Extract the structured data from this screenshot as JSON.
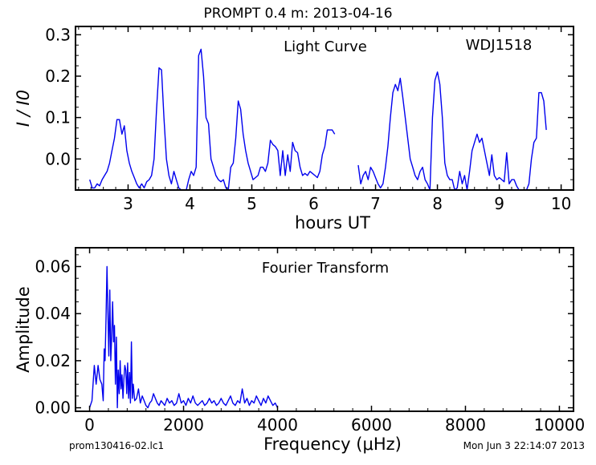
{
  "header": {
    "title": "PROMPT 0.4 m:  2013-04-16"
  },
  "footer": {
    "filename": "prom130416-02.lc1",
    "timestamp": "Mon Jun  3 22:14:07 2013"
  },
  "colors": {
    "line": "#0000ee",
    "axes": "#000000",
    "background": "#ffffff"
  },
  "chart_data": [
    {
      "type": "line",
      "title": "Light Curve",
      "annotation": "WDJ1518",
      "xlabel": "hours UT",
      "ylabel": "I / I0",
      "xlim": [
        2.15,
        10.2
      ],
      "ylim": [
        -0.075,
        0.32
      ],
      "xticks": [
        3,
        4,
        5,
        6,
        7,
        8,
        9,
        10
      ],
      "yticks": [
        0.0,
        0.1,
        0.2,
        0.3
      ],
      "xtick_labels": [
        "3",
        "4",
        "5",
        "6",
        "7",
        "8",
        "9",
        "10"
      ],
      "ytick_labels": [
        "0.0",
        "0.1",
        "0.2",
        "0.3"
      ],
      "grid": false,
      "series": [
        {
          "segments": [
            [
              [
                2.38,
                -0.05
              ],
              [
                2.42,
                -0.07
              ],
              [
                2.46,
                -0.07
              ],
              [
                2.5,
                -0.06
              ],
              [
                2.54,
                -0.065
              ],
              [
                2.58,
                -0.05
              ],
              [
                2.62,
                -0.04
              ],
              [
                2.66,
                -0.03
              ],
              [
                2.7,
                -0.01
              ],
              [
                2.74,
                0.02
              ],
              [
                2.78,
                0.05
              ],
              [
                2.82,
                0.095
              ],
              [
                2.86,
                0.095
              ],
              [
                2.9,
                0.06
              ],
              [
                2.94,
                0.08
              ],
              [
                2.98,
                0.02
              ],
              [
                3.02,
                -0.01
              ],
              [
                3.06,
                -0.03
              ],
              [
                3.1,
                -0.045
              ],
              [
                3.14,
                -0.06
              ],
              [
                3.18,
                -0.07
              ],
              [
                3.22,
                -0.06
              ],
              [
                3.26,
                -0.07
              ],
              [
                3.3,
                -0.055
              ],
              [
                3.34,
                -0.05
              ],
              [
                3.38,
                -0.04
              ],
              [
                3.42,
                0.0
              ],
              [
                3.46,
                0.12
              ],
              [
                3.5,
                0.22
              ],
              [
                3.54,
                0.215
              ],
              [
                3.58,
                0.1
              ],
              [
                3.62,
                0.0
              ],
              [
                3.66,
                -0.04
              ],
              [
                3.7,
                -0.06
              ],
              [
                3.74,
                -0.03
              ],
              [
                3.78,
                -0.05
              ],
              [
                3.82,
                -0.07
              ],
              [
                3.86,
                -0.075
              ],
              [
                3.9,
                -0.075
              ],
              [
                3.94,
                -0.075
              ],
              [
                3.98,
                -0.05
              ],
              [
                4.02,
                -0.03
              ],
              [
                4.06,
                -0.04
              ],
              [
                4.1,
                -0.02
              ],
              [
                4.14,
                0.25
              ],
              [
                4.18,
                0.265
              ],
              [
                4.22,
                0.2
              ],
              [
                4.26,
                0.1
              ],
              [
                4.3,
                0.085
              ],
              [
                4.34,
                0.0
              ],
              [
                4.38,
                -0.02
              ],
              [
                4.42,
                -0.04
              ],
              [
                4.46,
                -0.05
              ],
              [
                4.5,
                -0.055
              ],
              [
                4.54,
                -0.05
              ],
              [
                4.58,
                -0.07
              ],
              [
                4.62,
                -0.075
              ],
              [
                4.66,
                -0.02
              ],
              [
                4.7,
                -0.01
              ],
              [
                4.74,
                0.05
              ],
              [
                4.78,
                0.14
              ],
              [
                4.82,
                0.12
              ],
              [
                4.86,
                0.06
              ],
              [
                4.9,
                0.02
              ],
              [
                4.94,
                -0.01
              ],
              [
                4.98,
                -0.03
              ],
              [
                5.02,
                -0.05
              ],
              [
                5.06,
                -0.045
              ],
              [
                5.1,
                -0.04
              ],
              [
                5.14,
                -0.02
              ],
              [
                5.18,
                -0.02
              ],
              [
                5.22,
                -0.03
              ],
              [
                5.26,
                -0.01
              ],
              [
                5.3,
                0.045
              ],
              [
                5.34,
                0.035
              ],
              [
                5.38,
                0.03
              ],
              [
                5.42,
                0.02
              ],
              [
                5.46,
                -0.04
              ],
              [
                5.5,
                0.02
              ],
              [
                5.54,
                -0.04
              ],
              [
                5.58,
                0.01
              ],
              [
                5.62,
                -0.03
              ],
              [
                5.66,
                0.04
              ],
              [
                5.7,
                0.02
              ],
              [
                5.74,
                0.015
              ],
              [
                5.78,
                -0.02
              ],
              [
                5.82,
                -0.04
              ],
              [
                5.86,
                -0.035
              ],
              [
                5.9,
                -0.04
              ],
              [
                5.94,
                -0.03
              ],
              [
                5.98,
                -0.035
              ],
              [
                6.02,
                -0.04
              ],
              [
                6.06,
                -0.045
              ],
              [
                6.1,
                -0.03
              ],
              [
                6.14,
                0.01
              ],
              [
                6.18,
                0.03
              ],
              [
                6.22,
                0.07
              ],
              [
                6.26,
                0.07
              ],
              [
                6.3,
                0.07
              ],
              [
                6.34,
                0.06
              ]
            ],
            [
              [
                6.72,
                -0.015
              ],
              [
                6.76,
                -0.06
              ],
              [
                6.8,
                -0.04
              ],
              [
                6.84,
                -0.03
              ],
              [
                6.88,
                -0.05
              ],
              [
                6.92,
                -0.02
              ],
              [
                6.96,
                -0.03
              ],
              [
                7.0,
                -0.045
              ],
              [
                7.04,
                -0.06
              ],
              [
                7.08,
                -0.07
              ],
              [
                7.12,
                -0.06
              ],
              [
                7.16,
                -0.02
              ],
              [
                7.2,
                0.03
              ],
              [
                7.24,
                0.1
              ],
              [
                7.28,
                0.16
              ],
              [
                7.32,
                0.18
              ],
              [
                7.36,
                0.165
              ],
              [
                7.4,
                0.195
              ],
              [
                7.44,
                0.15
              ],
              [
                7.48,
                0.1
              ],
              [
                7.52,
                0.05
              ],
              [
                7.56,
                0.0
              ],
              [
                7.6,
                -0.02
              ],
              [
                7.64,
                -0.04
              ],
              [
                7.68,
                -0.05
              ],
              [
                7.72,
                -0.03
              ],
              [
                7.76,
                -0.02
              ],
              [
                7.8,
                -0.05
              ],
              [
                7.84,
                -0.06
              ],
              [
                7.88,
                -0.075
              ],
              [
                7.92,
                0.1
              ],
              [
                7.96,
                0.19
              ],
              [
                8.0,
                0.21
              ],
              [
                8.04,
                0.18
              ],
              [
                8.08,
                0.1
              ],
              [
                8.12,
                -0.01
              ],
              [
                8.16,
                -0.04
              ],
              [
                8.2,
                -0.05
              ],
              [
                8.24,
                -0.05
              ],
              [
                8.28,
                -0.075
              ],
              [
                8.32,
                -0.07
              ],
              [
                8.36,
                -0.03
              ],
              [
                8.4,
                -0.06
              ],
              [
                8.44,
                -0.04
              ],
              [
                8.48,
                -0.075
              ],
              [
                8.52,
                -0.03
              ],
              [
                8.56,
                0.02
              ],
              [
                8.6,
                0.04
              ],
              [
                8.64,
                0.06
              ],
              [
                8.68,
                0.04
              ],
              [
                8.72,
                0.05
              ],
              [
                8.76,
                0.02
              ],
              [
                8.8,
                -0.01
              ],
              [
                8.84,
                -0.04
              ],
              [
                8.88,
                0.01
              ],
              [
                8.92,
                -0.04
              ],
              [
                8.96,
                -0.05
              ],
              [
                9.0,
                -0.045
              ],
              [
                9.04,
                -0.05
              ],
              [
                9.08,
                -0.055
              ],
              [
                9.12,
                0.015
              ],
              [
                9.16,
                -0.06
              ],
              [
                9.2,
                -0.05
              ],
              [
                9.24,
                -0.05
              ],
              [
                9.28,
                -0.065
              ],
              [
                9.32,
                -0.075
              ],
              [
                9.36,
                -0.075
              ],
              [
                9.4,
                -0.075
              ],
              [
                9.44,
                -0.075
              ],
              [
                9.48,
                -0.06
              ],
              [
                9.52,
                0.0
              ],
              [
                9.56,
                0.04
              ],
              [
                9.6,
                0.05
              ],
              [
                9.64,
                0.16
              ],
              [
                9.68,
                0.16
              ],
              [
                9.72,
                0.14
              ],
              [
                9.76,
                0.07
              ]
            ]
          ]
        }
      ]
    },
    {
      "type": "line",
      "title": "Fourier Transform",
      "xlabel": "Frequency (μHz)",
      "ylabel": "Amplitude",
      "xlim": [
        -300,
        10300
      ],
      "ylim": [
        -0.0015,
        0.068
      ],
      "xticks": [
        0,
        2000,
        4000,
        6000,
        8000,
        10000
      ],
      "yticks": [
        0.0,
        0.02,
        0.04,
        0.06
      ],
      "xtick_labels": [
        "0",
        "2000",
        "4000",
        "6000",
        "8000",
        "10000"
      ],
      "ytick_labels": [
        "0.00",
        "0.02",
        "0.04",
        "0.06"
      ],
      "grid": false,
      "series": [
        {
          "x": [
            0,
            50,
            100,
            140,
            180,
            220,
            260,
            290,
            310,
            330,
            350,
            370,
            390,
            410,
            430,
            450,
            470,
            490,
            510,
            530,
            550,
            570,
            590,
            610,
            630,
            650,
            670,
            690,
            710,
            730,
            750,
            770,
            790,
            810,
            830,
            850,
            870,
            890,
            910,
            930,
            960,
            1000,
            1040,
            1080,
            1120,
            1160,
            1200,
            1240,
            1280,
            1320,
            1360,
            1400,
            1440,
            1480,
            1520,
            1560,
            1600,
            1650,
            1700,
            1750,
            1800,
            1850,
            1900,
            1950,
            2000,
            2050,
            2100,
            2150,
            2200,
            2250,
            2300,
            2350,
            2400,
            2450,
            2500,
            2550,
            2600,
            2650,
            2700,
            2750,
            2800,
            2850,
            2900,
            2950,
            3000,
            3050,
            3100,
            3150,
            3200,
            3250,
            3300,
            3350,
            3400,
            3450,
            3500,
            3550,
            3600,
            3650,
            3700,
            3750,
            3800,
            3850,
            3900,
            3950,
            4000
          ],
          "y": [
            0.0,
            0.003,
            0.018,
            0.01,
            0.018,
            0.012,
            0.01,
            0.003,
            0.025,
            0.02,
            0.038,
            0.06,
            0.04,
            0.022,
            0.05,
            0.02,
            0.03,
            0.045,
            0.028,
            0.035,
            0.01,
            0.03,
            0.0,
            0.016,
            0.006,
            0.02,
            0.008,
            0.014,
            0.004,
            0.012,
            0.018,
            0.016,
            0.006,
            0.019,
            0.004,
            0.015,
            0.002,
            0.028,
            0.004,
            0.01,
            0.003,
            0.004,
            0.008,
            0.002,
            0.005,
            0.003,
            0.001,
            0.0,
            0.002,
            0.003,
            0.006,
            0.004,
            0.002,
            0.001,
            0.003,
            0.002,
            0.001,
            0.004,
            0.002,
            0.003,
            0.001,
            0.002,
            0.006,
            0.002,
            0.003,
            0.001,
            0.004,
            0.002,
            0.005,
            0.002,
            0.001,
            0.002,
            0.003,
            0.001,
            0.002,
            0.004,
            0.002,
            0.003,
            0.001,
            0.002,
            0.004,
            0.002,
            0.001,
            0.003,
            0.005,
            0.002,
            0.001,
            0.003,
            0.002,
            0.008,
            0.002,
            0.004,
            0.001,
            0.003,
            0.002,
            0.005,
            0.003,
            0.001,
            0.004,
            0.002,
            0.005,
            0.003,
            0.001,
            0.002,
            0.0
          ]
        }
      ]
    }
  ]
}
